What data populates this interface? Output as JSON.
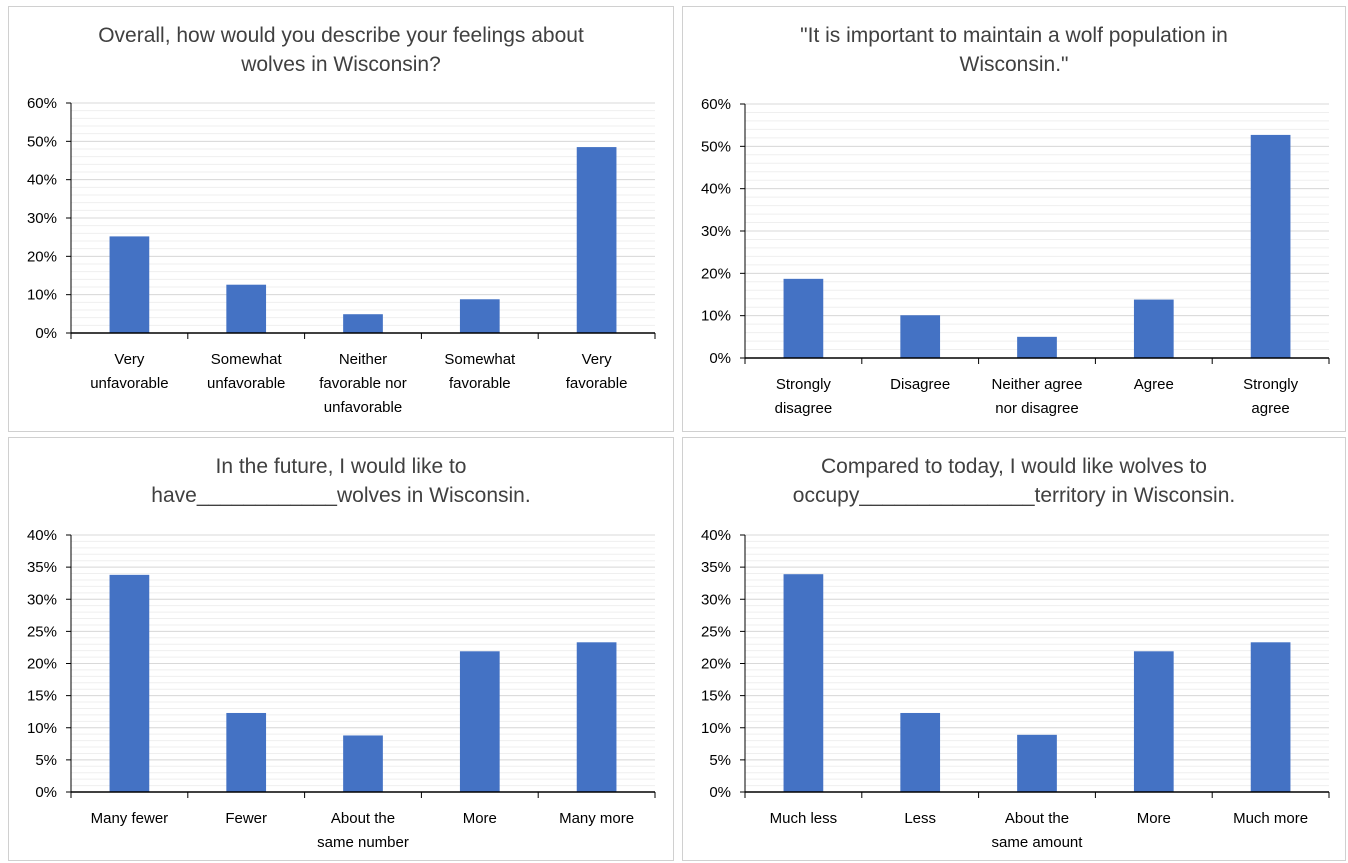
{
  "colors": {
    "bar": "#4472c4",
    "major_grid": "#d9d9d9",
    "minor_grid": "#efefef",
    "axis": "#000000"
  },
  "chart_data": [
    {
      "type": "bar",
      "title": [
        "Overall, how would you describe your feelings about",
        "wolves in Wisconsin?"
      ],
      "categories": [
        [
          "Very",
          "unfavorable"
        ],
        [
          "Somewhat",
          "unfavorable"
        ],
        [
          "Neither",
          "favorable nor",
          "unfavorable"
        ],
        [
          "Somewhat",
          "favorable"
        ],
        [
          "Very",
          "favorable"
        ]
      ],
      "values": [
        25.2,
        12.6,
        4.9,
        8.8,
        48.5
      ],
      "ylim": [
        0,
        60
      ],
      "ytick_step": 10,
      "minor_step": 2,
      "yticks": [
        "0%",
        "10%",
        "20%",
        "30%",
        "40%",
        "50%",
        "60%"
      ],
      "grid": true
    },
    {
      "type": "bar",
      "title": [
        "\"It is important to maintain a wolf population in",
        "Wisconsin.\""
      ],
      "categories": [
        [
          "Strongly",
          "disagree"
        ],
        [
          "Disagree"
        ],
        [
          "Neither agree",
          "nor disagree"
        ],
        [
          "Agree"
        ],
        [
          "Strongly",
          "agree"
        ]
      ],
      "values": [
        18.7,
        10.1,
        5.0,
        13.8,
        52.7
      ],
      "ylim": [
        0,
        60
      ],
      "ytick_step": 10,
      "minor_step": 2,
      "yticks": [
        "0%",
        "10%",
        "20%",
        "30%",
        "40%",
        "50%",
        "60%"
      ],
      "grid": true
    },
    {
      "type": "bar",
      "title": [
        "In the future, I would like to",
        "have____________wolves in Wisconsin."
      ],
      "categories": [
        [
          "Many fewer"
        ],
        [
          "Fewer"
        ],
        [
          "About the",
          "same number"
        ],
        [
          "More"
        ],
        [
          "Many more"
        ]
      ],
      "values": [
        33.8,
        12.3,
        8.8,
        21.9,
        23.3
      ],
      "ylim": [
        0,
        40
      ],
      "ytick_step": 5,
      "minor_step": 1,
      "yticks": [
        "0%",
        "5%",
        "10%",
        "15%",
        "20%",
        "25%",
        "30%",
        "35%",
        "40%"
      ],
      "grid": true
    },
    {
      "type": "bar",
      "title": [
        "Compared to today, I would like wolves to",
        "occupy_______________territory in Wisconsin."
      ],
      "categories": [
        [
          "Much less"
        ],
        [
          "Less"
        ],
        [
          "About the",
          "same amount"
        ],
        [
          "More"
        ],
        [
          "Much more"
        ]
      ],
      "values": [
        33.9,
        12.3,
        8.9,
        21.9,
        23.3
      ],
      "ylim": [
        0,
        40
      ],
      "ytick_step": 5,
      "minor_step": 1,
      "yticks": [
        "0%",
        "5%",
        "10%",
        "15%",
        "20%",
        "25%",
        "30%",
        "35%",
        "40%"
      ],
      "grid": true
    }
  ]
}
